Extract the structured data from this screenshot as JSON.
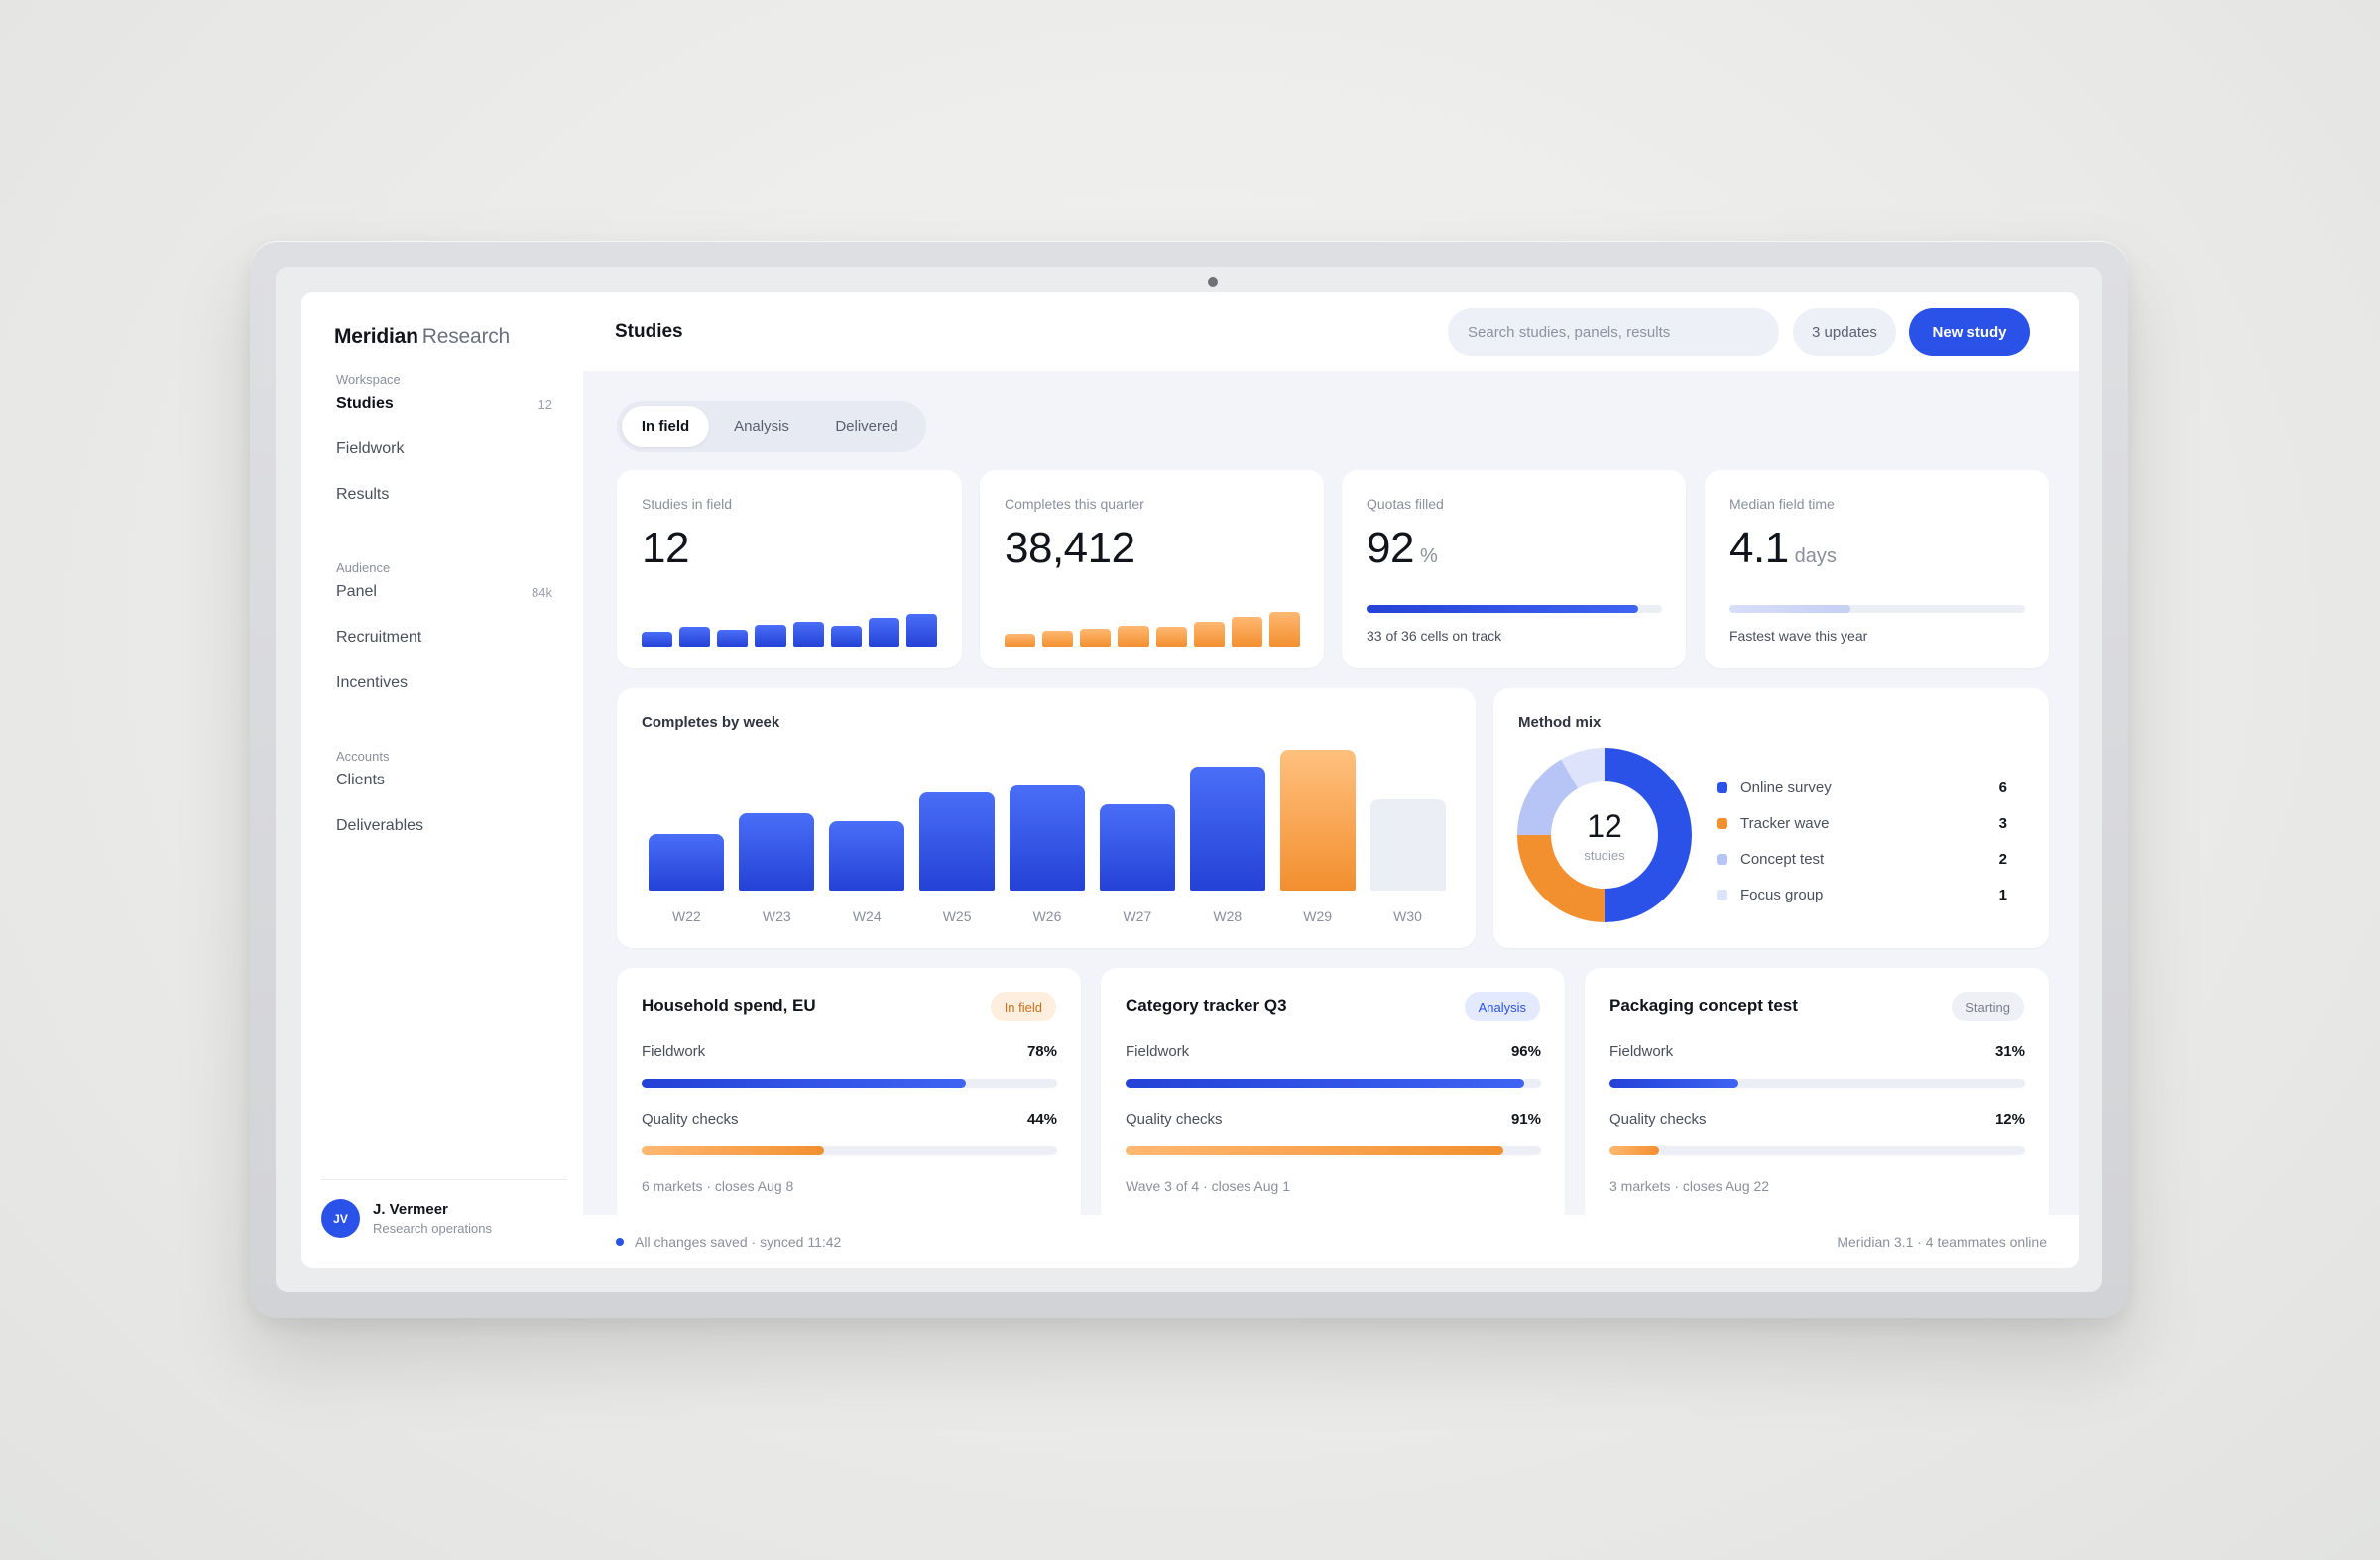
{
  "brand": {
    "name": "Meridian",
    "suffix": "Research"
  },
  "header": {
    "title": "Studies",
    "search_placeholder": "Search studies, panels, results",
    "updates_label": "3 updates",
    "new_study_label": "New study"
  },
  "sidebar": {
    "sections": [
      {
        "title": "Workspace",
        "items": [
          {
            "label": "Studies",
            "count": "12",
            "active": true
          },
          {
            "label": "Fieldwork",
            "count": ""
          },
          {
            "label": "Results",
            "count": ""
          }
        ]
      },
      {
        "title": "Audience",
        "items": [
          {
            "label": "Panel",
            "count": "84k"
          },
          {
            "label": "Recruitment",
            "count": ""
          },
          {
            "label": "Incentives",
            "count": ""
          }
        ]
      },
      {
        "title": "Accounts",
        "items": [
          {
            "label": "Clients",
            "count": ""
          },
          {
            "label": "Deliverables",
            "count": ""
          }
        ]
      }
    ],
    "user": {
      "initials": "JV",
      "name": "J. Vermeer",
      "role": "Research operations"
    }
  },
  "tabs": [
    {
      "label": "In field",
      "active": true
    },
    {
      "label": "Analysis",
      "active": false
    },
    {
      "label": "Delivered",
      "active": false
    }
  ],
  "kpis": [
    {
      "label": "Studies in field",
      "value": "12",
      "spark": [
        0.28,
        0.38,
        0.33,
        0.42,
        0.48,
        0.41,
        0.55,
        0.63
      ],
      "spark_color": "blue"
    },
    {
      "label": "Completes this quarter",
      "value": "38,412",
      "spark": [
        0.25,
        0.31,
        0.35,
        0.41,
        0.38,
        0.49,
        0.58,
        0.67
      ],
      "spark_color": "orange"
    },
    {
      "label": "Quotas filled",
      "value": "92",
      "unit": "%",
      "progress": 0.92,
      "note": "33 of 36 cells on track"
    },
    {
      "label": "Median field time",
      "value": "4.1",
      "unit": "days",
      "progress": 0.41,
      "note": "Fastest wave this year"
    }
  ],
  "weekly": {
    "title": "Completes by week",
    "chart_data": {
      "type": "bar",
      "categories": [
        "W22",
        "W23",
        "W24",
        "W25",
        "W26",
        "W27",
        "W28",
        "W29",
        "W30"
      ],
      "values": [
        0.4,
        0.55,
        0.49,
        0.7,
        0.75,
        0.61,
        0.88,
        1.0,
        0.65
      ],
      "highlight": "W29",
      "placeholder": "W30",
      "colors": {
        "default": "#2b52e8",
        "highlight": "#f28f2f",
        "placeholder": "#eceef6"
      }
    }
  },
  "method_mix": {
    "title": "Method mix",
    "total": "12",
    "total_label": "studies",
    "items": [
      {
        "label": "Online survey",
        "value": 6,
        "color": "#2b52e8"
      },
      {
        "label": "Tracker wave",
        "value": 3,
        "color": "#f28f2f"
      },
      {
        "label": "Concept test",
        "value": 2,
        "color": "#b6c4f6"
      },
      {
        "label": "Focus group",
        "value": 1,
        "color": "#dce3fb"
      }
    ]
  },
  "studies": [
    {
      "title": "Household spend, EU",
      "status": "In field",
      "status_class": "infield",
      "fieldwork_label": "Fieldwork",
      "fieldwork": "78%",
      "fieldwork_pct": 0.78,
      "quality_label": "Quality checks",
      "quality": "44%",
      "quality_pct": 0.44,
      "meta": "6 markets · closes Aug 8"
    },
    {
      "title": "Category tracker Q3",
      "status": "Analysis",
      "status_class": "analysis",
      "fieldwork_label": "Fieldwork",
      "fieldwork": "96%",
      "fieldwork_pct": 0.96,
      "quality_label": "Quality checks",
      "quality": "91%",
      "quality_pct": 0.91,
      "meta": "Wave 3 of 4 · closes Aug 1"
    },
    {
      "title": "Packaging concept test",
      "status": "Starting",
      "status_class": "starting",
      "fieldwork_label": "Fieldwork",
      "fieldwork": "31%",
      "fieldwork_pct": 0.31,
      "quality_label": "Quality checks",
      "quality": "12%",
      "quality_pct": 0.12,
      "meta": "3 markets · closes Aug 22"
    }
  ],
  "status": {
    "left": "All changes saved · synced 11:42",
    "right": "Meridian 3.1 · 4 teammates online"
  }
}
